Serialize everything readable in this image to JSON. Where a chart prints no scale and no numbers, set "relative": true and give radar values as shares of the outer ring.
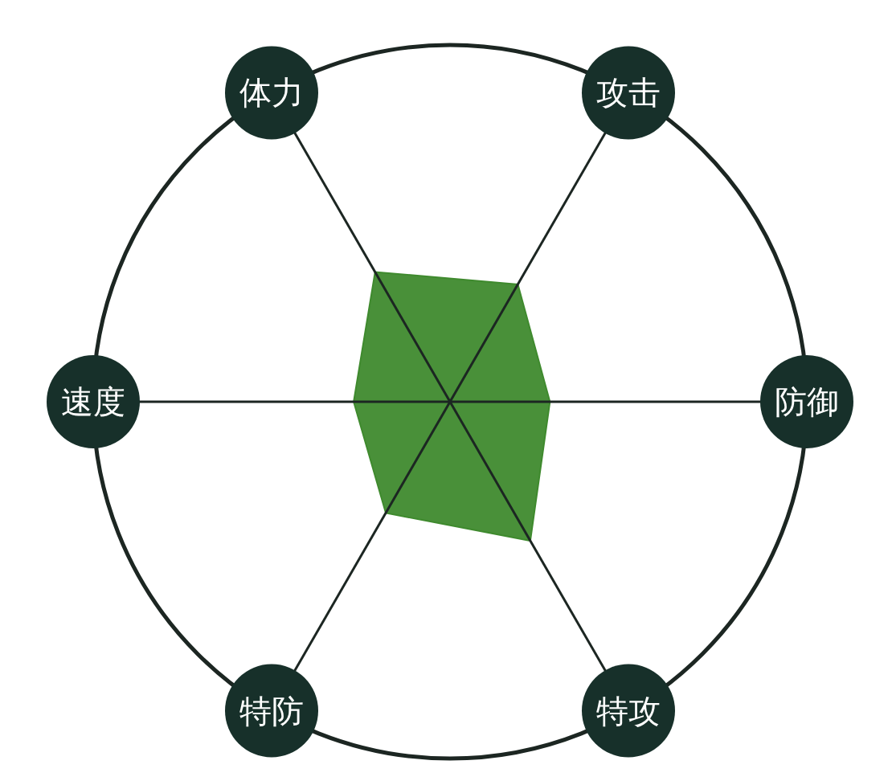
{
  "chart_data": {
    "type": "radar",
    "relative": true,
    "categories": [
      "攻击",
      "防御",
      "特攻",
      "特防",
      "速度",
      "体力"
    ],
    "series": [
      {
        "color": "#3f8a2e",
        "values": [
          0.38,
          0.28,
          0.45,
          0.36,
          0.27,
          0.42
        ]
      }
    ]
  }
}
